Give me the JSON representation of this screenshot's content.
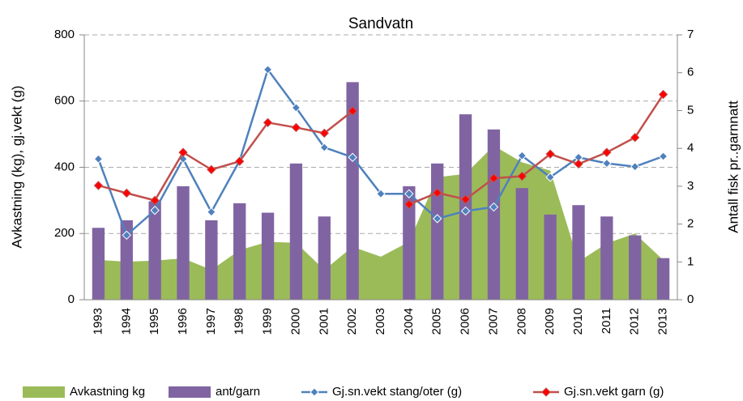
{
  "chart_data": {
    "type": "bar",
    "title": "Sandvatn",
    "y_label": "Avkastning (kg), gj.vekt (g)",
    "y2_label": "Antall fisk pr..garnnatt",
    "categories": [
      "1993",
      "1994",
      "1995",
      "1996",
      "1997",
      "1998",
      "1999",
      "2000",
      "2001",
      "2002",
      "2003",
      "2004",
      "2005",
      "2006",
      "2007",
      "2008",
      "2009",
      "2010",
      "2011",
      "2012",
      "2013"
    ],
    "ylim": [
      0,
      800
    ],
    "yticks": [
      0,
      200,
      400,
      600,
      800
    ],
    "y2lim": [
      0,
      7
    ],
    "y2ticks": [
      0,
      1,
      2,
      3,
      4,
      5,
      6,
      7
    ],
    "grid": true,
    "legend": "bottom",
    "series": [
      {
        "name": "Avkastning kg",
        "type": "area",
        "color": "#9bbb59",
        "values": [
          120,
          115,
          118,
          125,
          90,
          150,
          175,
          172,
          90,
          160,
          130,
          175,
          370,
          380,
          465,
          415,
          390,
          115,
          170,
          200,
          120
        ]
      },
      {
        "name": "ant/garn",
        "type": "bar",
        "axis": "y2",
        "color": "#8064a2",
        "values": [
          1.9,
          2.1,
          2.6,
          3.0,
          2.1,
          2.55,
          2.3,
          3.6,
          2.2,
          5.75,
          null,
          3.0,
          3.6,
          4.9,
          4.5,
          2.95,
          2.25,
          2.5,
          2.2,
          1.7,
          1.1
        ]
      },
      {
        "name": "Gj.sn.vekt stang/oter (g)",
        "type": "line",
        "color": "#4f81bd",
        "marker": "diamond",
        "values": [
          425,
          195,
          270,
          425,
          265,
          420,
          695,
          580,
          460,
          430,
          320,
          320,
          245,
          268,
          280,
          435,
          370,
          430,
          412,
          402,
          433
        ]
      },
      {
        "name": "Gj.sn.vekt garn (g)",
        "type": "line",
        "color": "#c0504d",
        "marker": "diamond-red",
        "values": [
          345,
          322,
          300,
          445,
          393,
          418,
          535,
          520,
          503,
          570,
          null,
          288,
          323,
          303,
          367,
          373,
          440,
          410,
          445,
          490,
          620
        ]
      }
    ]
  }
}
